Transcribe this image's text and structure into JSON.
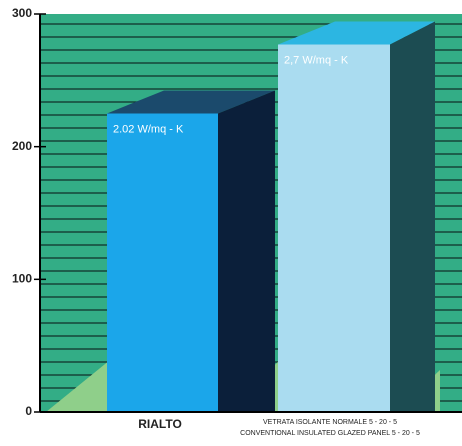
{
  "chart_data": {
    "type": "bar3d",
    "categories": [
      [
        "RIALTO"
      ],
      [
        "VETRATA ISOLANTE NORMALE 5 - 20 - 5",
        "CONVENTIONAL INSULATED GLAZED PANEL 5 - 20 - 5"
      ]
    ],
    "values": [
      225,
      277
    ],
    "annotations": [
      "2.02 W/mq - K",
      "2,7 W/mq - K"
    ],
    "colors": [
      "#1ba6ea",
      "#aadcf0"
    ],
    "ylim": [
      0,
      300
    ],
    "yticks": [
      0,
      100,
      200,
      300
    ]
  }
}
